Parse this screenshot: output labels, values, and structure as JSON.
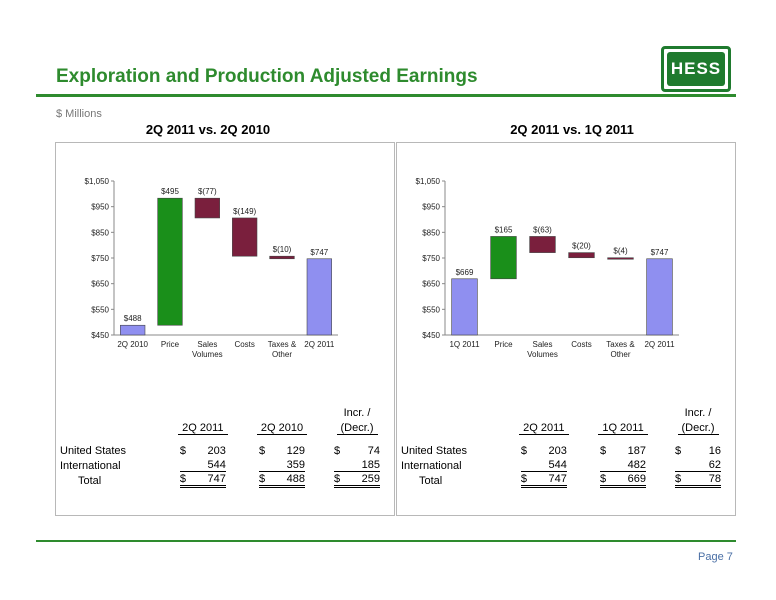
{
  "header": {
    "title": "Exploration and Production Adjusted Earnings",
    "units": "$ Millions",
    "logo_text": "HESS",
    "page": "Page 7"
  },
  "colors": {
    "green": "#2e8b2e",
    "increase": "#1a8f1a",
    "decrease": "#7a1f3d",
    "total": "#8f8ff0"
  },
  "chart_data": [
    {
      "type": "bar",
      "subtype": "waterfall",
      "title": "2Q 2011 vs. 2Q 2010",
      "categories": [
        "2Q 2010",
        "Price",
        "Sales Volumes",
        "Costs",
        "Taxes & Other",
        "2Q 2011"
      ],
      "values": [
        488,
        495,
        -77,
        -149,
        -10,
        747
      ],
      "kinds": [
        "total",
        "increase",
        "decrease",
        "decrease",
        "decrease",
        "total"
      ],
      "data_labels": [
        "$488",
        "$495",
        "$(77)",
        "$(149)",
        "$(10)",
        "$747"
      ],
      "ylim": [
        450,
        1050
      ],
      "yticks": [
        450,
        550,
        650,
        750,
        850,
        950,
        1050
      ],
      "ytick_labels": [
        "$450",
        "$550",
        "$650",
        "$750",
        "$850",
        "$950",
        "$1,050"
      ],
      "grid": false,
      "legend": "none"
    },
    {
      "type": "bar",
      "subtype": "waterfall",
      "title": "2Q 2011 vs. 1Q 2011",
      "categories": [
        "1Q 2011",
        "Price",
        "Sales Volumes",
        "Costs",
        "Taxes & Other",
        "2Q 2011"
      ],
      "values": [
        669,
        165,
        -63,
        -20,
        -4,
        747
      ],
      "kinds": [
        "total",
        "increase",
        "decrease",
        "decrease",
        "decrease",
        "total"
      ],
      "data_labels": [
        "$669",
        "$165",
        "$(63)",
        "$(20)",
        "$(4)",
        "$747"
      ],
      "ylim": [
        450,
        1050
      ],
      "yticks": [
        450,
        550,
        650,
        750,
        850,
        950,
        1050
      ],
      "ytick_labels": [
        "$450",
        "$550",
        "$650",
        "$750",
        "$850",
        "$950",
        "$1,050"
      ],
      "grid": false,
      "legend": "none"
    }
  ],
  "tables": [
    {
      "header_top": "Incr. /",
      "columns": [
        "2Q 2011",
        "2Q 2010",
        "(Decr.)"
      ],
      "rows": [
        {
          "label": "United States",
          "values": [
            "203",
            "129",
            "74"
          ],
          "dollar": true
        },
        {
          "label": "International",
          "values": [
            "544",
            "359",
            "185"
          ],
          "dollar": false
        },
        {
          "label": "Total",
          "values": [
            "747",
            "488",
            "259"
          ],
          "dollar": true
        }
      ]
    },
    {
      "header_top": "Incr. /",
      "columns": [
        "2Q 2011",
        "1Q 2011",
        "(Decr.)"
      ],
      "rows": [
        {
          "label": "United States",
          "values": [
            "203",
            "187",
            "16"
          ],
          "dollar": true
        },
        {
          "label": "International",
          "values": [
            "544",
            "482",
            "62"
          ],
          "dollar": false
        },
        {
          "label": "Total",
          "values": [
            "747",
            "669",
            "78"
          ],
          "dollar": true
        }
      ]
    }
  ]
}
